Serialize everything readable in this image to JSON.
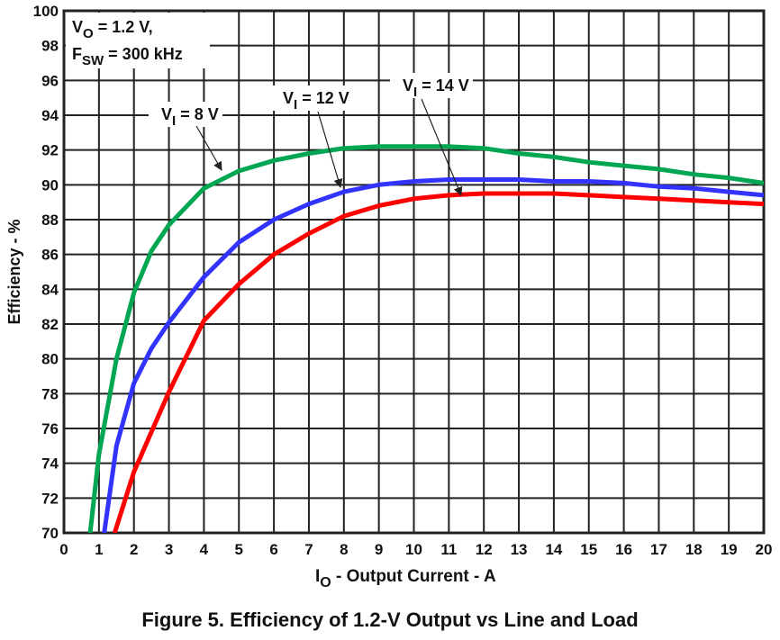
{
  "chart_data": {
    "type": "line",
    "title": "Figure 5. Efficiency of 1.2-V Output vs Line and Load",
    "xlabel": {
      "main": "I",
      "sub": "O",
      "rest": " - Output Current - A"
    },
    "ylabel": "Efficiency - %",
    "xlim": [
      0,
      20
    ],
    "ylim": [
      70,
      100
    ],
    "xticks": [
      0,
      1,
      2,
      3,
      4,
      5,
      6,
      7,
      8,
      9,
      10,
      11,
      12,
      13,
      14,
      15,
      16,
      17,
      18,
      19,
      20
    ],
    "yticks": [
      70,
      72,
      74,
      76,
      78,
      80,
      82,
      84,
      86,
      88,
      90,
      92,
      94,
      96,
      98,
      100
    ],
    "grid": true,
    "conditions": [
      {
        "main": "V",
        "sub": "O",
        "rest": " = 1.2 V,"
      },
      {
        "main": "F",
        "sub": "SW",
        "rest": " = 300 kHz"
      }
    ],
    "series": [
      {
        "name": "VI = 8 V",
        "label": {
          "main": "V",
          "sub": "I",
          "rest": " = 8 V"
        },
        "color": "#00a651",
        "x": [
          0.75,
          1,
          1.5,
          2,
          2.5,
          3,
          4,
          5,
          6,
          7,
          8,
          9,
          10,
          11,
          12,
          13,
          14,
          15,
          16,
          17,
          18,
          19,
          20
        ],
        "y": [
          70,
          74.5,
          80,
          83.8,
          86.2,
          87.7,
          89.8,
          90.8,
          91.4,
          91.8,
          92.1,
          92.2,
          92.2,
          92.2,
          92.1,
          91.8,
          91.6,
          91.3,
          91.1,
          90.9,
          90.6,
          90.4,
          90.1
        ]
      },
      {
        "name": "VI = 12 V",
        "label": {
          "main": "V",
          "sub": "I",
          "rest": " = 12 V"
        },
        "color": "#3333ff",
        "x": [
          1.15,
          1.5,
          2,
          2.5,
          3,
          4,
          5,
          6,
          7,
          8,
          9,
          10,
          11,
          12,
          13,
          14,
          15,
          16,
          17,
          18,
          19,
          20
        ],
        "y": [
          70,
          75,
          78.6,
          80.6,
          82.1,
          84.7,
          86.7,
          88,
          88.9,
          89.6,
          90,
          90.2,
          90.3,
          90.3,
          90.3,
          90.2,
          90.2,
          90.1,
          89.9,
          89.8,
          89.6,
          89.4
        ]
      },
      {
        "name": "VI = 14 V",
        "label": {
          "main": "V",
          "sub": "I",
          "rest": " = 14 V"
        },
        "color": "#ff0000",
        "x": [
          1.45,
          2,
          2.5,
          3,
          4,
          5,
          6,
          7,
          8,
          9,
          10,
          11,
          12,
          13,
          14,
          15,
          16,
          17,
          18,
          19,
          20
        ],
        "y": [
          70,
          73.5,
          75.8,
          78.1,
          82.2,
          84.3,
          86,
          87.2,
          88.2,
          88.8,
          89.2,
          89.4,
          89.5,
          89.5,
          89.5,
          89.4,
          89.3,
          89.2,
          89.1,
          89,
          88.9
        ]
      }
    ]
  }
}
